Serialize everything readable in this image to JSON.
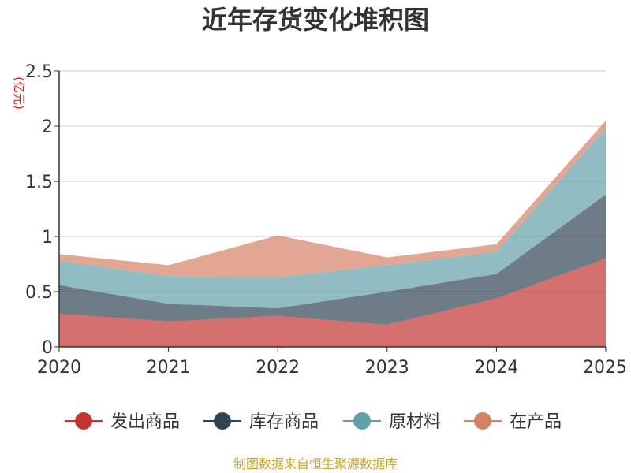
{
  "chart_data": {
    "type": "area",
    "stacked": true,
    "title": "近年存货变化堆积图",
    "unit_label": "(亿元)",
    "x": [
      "2020",
      "2021",
      "2022",
      "2023",
      "2024",
      "2025"
    ],
    "ylim": [
      0,
      2.5
    ],
    "yticks": [
      "0",
      "0.5",
      "1",
      "1.5",
      "2",
      "2.5"
    ],
    "grid": true,
    "legend_position": "bottom",
    "series": [
      {
        "name": "发出商品",
        "color": "#c23531",
        "values": [
          0.3,
          0.23,
          0.28,
          0.2,
          0.44,
          0.8
        ]
      },
      {
        "name": "库存商品",
        "color": "#2f4554",
        "values": [
          0.26,
          0.16,
          0.07,
          0.3,
          0.22,
          0.58
        ]
      },
      {
        "name": "原材料",
        "color": "#61a0a8",
        "values": [
          0.22,
          0.25,
          0.28,
          0.24,
          0.2,
          0.6
        ]
      },
      {
        "name": "在产品",
        "color": "#d48265",
        "values": [
          0.06,
          0.1,
          0.38,
          0.07,
          0.07,
          0.07
        ]
      }
    ],
    "source": "制图数据来自恒生聚源数据库"
  }
}
